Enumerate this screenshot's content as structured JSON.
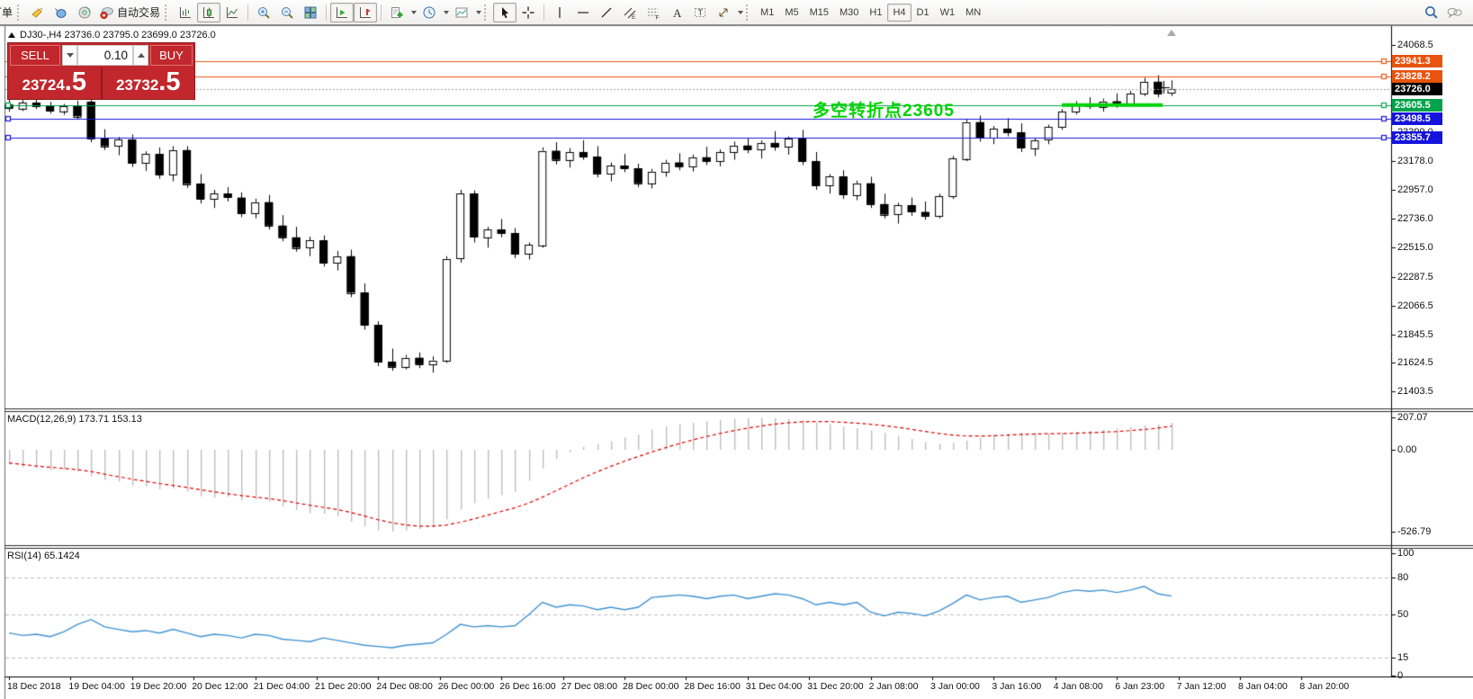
{
  "toolbar": {
    "order_label": "打单",
    "autotrade_label": "自动交易",
    "timeframes": [
      {
        "label": "M1",
        "active": false
      },
      {
        "label": "M5",
        "active": false
      },
      {
        "label": "M15",
        "active": false
      },
      {
        "label": "M30",
        "active": false
      },
      {
        "label": "H1",
        "active": false
      },
      {
        "label": "H4",
        "active": true
      },
      {
        "label": "D1",
        "active": false
      },
      {
        "label": "W1",
        "active": false
      },
      {
        "label": "MN",
        "active": false
      }
    ]
  },
  "chart": {
    "title": "DJ30-,H4 23736.0 23795.0 23699.0 23726.0",
    "annotation": "多空转折点23605",
    "annotation_color": "#00d300"
  },
  "trade_panel": {
    "sell_label": "SELL",
    "buy_label": "BUY",
    "lot": "0.10",
    "sell_price_main": "23724",
    "sell_price_frac": ".5",
    "buy_price_main": "23732",
    "buy_price_frac": ".5",
    "panel_color": "#c1272d"
  },
  "price_lines": [
    {
      "value": "23941.3",
      "price": 23941.3,
      "color": "#e8530e",
      "style": "solid"
    },
    {
      "value": "23828.2",
      "price": 23828.2,
      "color": "#e8530e",
      "style": "solid"
    },
    {
      "value": "23726.0",
      "price": 23726.0,
      "color": "#000000",
      "style": "bid",
      "line_color": "#9a9a9a"
    },
    {
      "value": "23605.5",
      "price": 23605.5,
      "color": "#00a24a",
      "style": "solid",
      "highlight": true,
      "highlight_color": "#00d300"
    },
    {
      "value": "23498.5",
      "price": 23498.5,
      "color": "#1414dc",
      "style": "solid"
    },
    {
      "value": "23355.7",
      "price": 23355.7,
      "color": "#1414dc",
      "style": "solid"
    }
  ],
  "chart_data": [
    {
      "type": "candlestick",
      "symbol": "DJ30-",
      "period": "H4",
      "ohlc_display": {
        "open": "23736.0",
        "high": "23795.0",
        "low": "23699.0",
        "close": "23726.0"
      },
      "ylim": [
        21330,
        24150
      ],
      "yticks": [
        "24068.5",
        "23399.0",
        "23178.0",
        "22957.0",
        "22736.0",
        "22515.0",
        "22287.5",
        "22066.5",
        "21845.5",
        "21624.5",
        "21403.5"
      ],
      "x_labels": [
        "18 Dec 2018",
        "19 Dec 04:00",
        "19 Dec 20:00",
        "20 Dec 12:00",
        "21 Dec 04:00",
        "21 Dec 20:00",
        "24 Dec 08:00",
        "26 Dec 00:00",
        "26 Dec 16:00",
        "27 Dec 08:00",
        "28 Dec 00:00",
        "28 Dec 16:00",
        "31 Dec 04:00",
        "31 Dec 20:00",
        "2 Jan 08:00",
        "3 Jan 00:00",
        "3 Jan 16:00",
        "4 Jan 08:00",
        "6 Jan 23:00",
        "7 Jan 12:00",
        "8 Jan 04:00",
        "8 Jan 20:00"
      ],
      "candles": [
        [
          23610,
          23655,
          23555,
          23580
        ],
        [
          23580,
          23645,
          23560,
          23625
        ],
        [
          23625,
          23665,
          23575,
          23595
        ],
        [
          23595,
          23630,
          23540,
          23560
        ],
        [
          23560,
          23615,
          23530,
          23600
        ],
        [
          23600,
          23640,
          23500,
          23520
        ],
        [
          23630,
          23665,
          23320,
          23350
        ],
        [
          23350,
          23420,
          23260,
          23290
        ],
        [
          23290,
          23360,
          23220,
          23340
        ],
        [
          23340,
          23380,
          23130,
          23160
        ],
        [
          23160,
          23250,
          23100,
          23230
        ],
        [
          23230,
          23280,
          23040,
          23070
        ],
        [
          23070,
          23290,
          23020,
          23260
        ],
        [
          23260,
          23290,
          22970,
          23000
        ],
        [
          23000,
          23075,
          22850,
          22885
        ],
        [
          22885,
          22955,
          22815,
          22925
        ],
        [
          22925,
          22975,
          22865,
          22895
        ],
        [
          22895,
          22935,
          22745,
          22775
        ],
        [
          22775,
          22885,
          22735,
          22860
        ],
        [
          22860,
          22915,
          22650,
          22680
        ],
        [
          22680,
          22760,
          22560,
          22590
        ],
        [
          22590,
          22670,
          22480,
          22510
        ],
        [
          22510,
          22595,
          22445,
          22565
        ],
        [
          22565,
          22605,
          22365,
          22395
        ],
        [
          22395,
          22485,
          22335,
          22445
        ],
        [
          22445,
          22495,
          22130,
          22165
        ],
        [
          22165,
          22235,
          21880,
          21915
        ],
        [
          21915,
          21945,
          21600,
          21635
        ],
        [
          21635,
          21735,
          21565,
          21595
        ],
        [
          21595,
          21685,
          21575,
          21665
        ],
        [
          21665,
          21705,
          21585,
          21615
        ],
        [
          21615,
          21675,
          21550,
          21645
        ],
        [
          21645,
          22445,
          21625,
          22425
        ],
        [
          22425,
          22955,
          22395,
          22925
        ],
        [
          22925,
          22950,
          22550,
          22590
        ],
        [
          22590,
          22670,
          22510,
          22650
        ],
        [
          22650,
          22730,
          22590,
          22620
        ],
        [
          22620,
          22660,
          22430,
          22460
        ],
        [
          22460,
          22550,
          22420,
          22530
        ],
        [
          22530,
          23280,
          22510,
          23255
        ],
        [
          23255,
          23320,
          23150,
          23185
        ],
        [
          23185,
          23275,
          23125,
          23245
        ],
        [
          23245,
          23335,
          23185,
          23210
        ],
        [
          23210,
          23290,
          23050,
          23080
        ],
        [
          23080,
          23165,
          23020,
          23140
        ],
        [
          23140,
          23230,
          23090,
          23120
        ],
        [
          23120,
          23155,
          22975,
          23005
        ],
        [
          23005,
          23115,
          22965,
          23095
        ],
        [
          23095,
          23185,
          23055,
          23165
        ],
        [
          23165,
          23235,
          23105,
          23135
        ],
        [
          23135,
          23225,
          23095,
          23205
        ],
        [
          23205,
          23285,
          23145,
          23175
        ],
        [
          23175,
          23265,
          23135,
          23245
        ],
        [
          23245,
          23325,
          23185,
          23295
        ],
        [
          23295,
          23355,
          23235,
          23265
        ],
        [
          23265,
          23335,
          23195,
          23315
        ],
        [
          23315,
          23405,
          23255,
          23285
        ],
        [
          23285,
          23365,
          23225,
          23345
        ],
        [
          23345,
          23415,
          23145,
          23175
        ],
        [
          23175,
          23245,
          22955,
          22985
        ],
        [
          22985,
          23075,
          22925,
          23055
        ],
        [
          23055,
          23105,
          22885,
          22915
        ],
        [
          22915,
          23025,
          22875,
          23005
        ],
        [
          23005,
          23055,
          22815,
          22845
        ],
        [
          22845,
          22925,
          22735,
          22765
        ],
        [
          22765,
          22855,
          22695,
          22835
        ],
        [
          22835,
          22895,
          22755,
          22785
        ],
        [
          22785,
          22865,
          22725,
          22755
        ],
        [
          22755,
          22925,
          22735,
          22905
        ],
        [
          22905,
          23215,
          22885,
          23195
        ],
        [
          23195,
          23495,
          23175,
          23475
        ],
        [
          23475,
          23525,
          23325,
          23355
        ],
        [
          23355,
          23445,
          23305,
          23425
        ],
        [
          23425,
          23505,
          23365,
          23395
        ],
        [
          23395,
          23465,
          23245,
          23275
        ],
        [
          23275,
          23355,
          23215,
          23335
        ],
        [
          23335,
          23455,
          23305,
          23435
        ],
        [
          23435,
          23575,
          23415,
          23555
        ],
        [
          23555,
          23635,
          23535,
          23615
        ],
        [
          23615,
          23665,
          23575,
          23595
        ],
        [
          23595,
          23655,
          23555,
          23635
        ],
        [
          23635,
          23695,
          23585,
          23615
        ],
        [
          23615,
          23715,
          23595,
          23695
        ],
        [
          23695,
          23815,
          23675,
          23785
        ],
        [
          23785,
          23835,
          23665,
          23695
        ],
        [
          23695,
          23795,
          23675,
          23726
        ]
      ]
    },
    {
      "type": "bar",
      "name": "MACD",
      "params": "(12,26,9)",
      "label": "MACD(12,26,9) 173.71 153.13",
      "values_current": [
        "173.71",
        "153.13"
      ],
      "yticks": [
        "207.07",
        "0.00",
        "-526.79"
      ],
      "histogram_color": "#bdbdbd",
      "signal_color": "#dd0000",
      "histogram": [
        -95,
        -110,
        -120,
        -130,
        -125,
        -140,
        -170,
        -195,
        -205,
        -230,
        -235,
        -255,
        -250,
        -270,
        -300,
        -310,
        -305,
        -325,
        -320,
        -335,
        -365,
        -390,
        -410,
        -415,
        -430,
        -465,
        -495,
        -520,
        -527,
        -522,
        -512,
        -498,
        -450,
        -385,
        -345,
        -315,
        -292,
        -272,
        -200,
        -120,
        -60,
        -15,
        20,
        35,
        55,
        80,
        100,
        130,
        150,
        165,
        175,
        185,
        195,
        200,
        205,
        207,
        205,
        200,
        190,
        175,
        165,
        150,
        140,
        125,
        110,
        90,
        70,
        50,
        40,
        45,
        60,
        80,
        95,
        105,
        110,
        108,
        105,
        108,
        115,
        122,
        130,
        138,
        146,
        155,
        164,
        174
      ],
      "signal": [
        -85,
        -95,
        -105,
        -113,
        -120,
        -128,
        -140,
        -158,
        -174,
        -190,
        -204,
        -218,
        -230,
        -243,
        -258,
        -272,
        -284,
        -296,
        -306,
        -315,
        -328,
        -343,
        -358,
        -372,
        -386,
        -405,
        -428,
        -452,
        -472,
        -486,
        -494,
        -494,
        -486,
        -468,
        -446,
        -422,
        -398,
        -374,
        -344,
        -306,
        -264,
        -222,
        -180,
        -142,
        -107,
        -74,
        -44,
        -14,
        14,
        40,
        64,
        86,
        106,
        124,
        140,
        154,
        166,
        175,
        181,
        183,
        182,
        178,
        172,
        165,
        156,
        145,
        132,
        118,
        105,
        95,
        90,
        89,
        91,
        95,
        99,
        102,
        104,
        105,
        107,
        110,
        114,
        118,
        124,
        131,
        140,
        153
      ]
    },
    {
      "type": "line",
      "name": "RSI",
      "params": "(14)",
      "label": "RSI(14) 65.1424",
      "value_current": "65.1424",
      "yticks": [
        "100",
        "80",
        "50",
        "15",
        "0"
      ],
      "levels": [
        80,
        50,
        15
      ],
      "line_color": "#3f92d2",
      "values": [
        35,
        33,
        34,
        32,
        36,
        42,
        46,
        40,
        38,
        36,
        37,
        35,
        38,
        35,
        32,
        34,
        33,
        31,
        34,
        33,
        30,
        29,
        28,
        31,
        29,
        27,
        25,
        24,
        23,
        25,
        26,
        27,
        34,
        42,
        40,
        41,
        40,
        41,
        50,
        60,
        56,
        58,
        57,
        54,
        56,
        54,
        56,
        64,
        65,
        66,
        65,
        63,
        65,
        66,
        63,
        65,
        67,
        66,
        63,
        58,
        60,
        58,
        60,
        52,
        49,
        52,
        51,
        49,
        53,
        59,
        66,
        62,
        64,
        65,
        60,
        62,
        64,
        68,
        70,
        69,
        70,
        68,
        70,
        73,
        67,
        65.1
      ]
    }
  ]
}
